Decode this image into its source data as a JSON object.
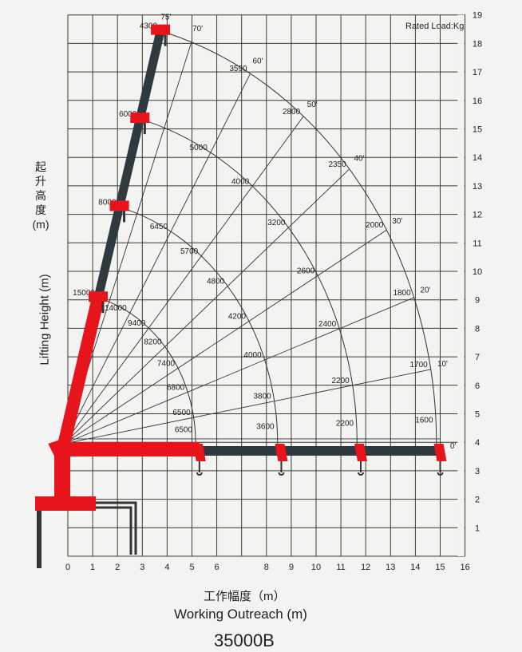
{
  "chart_data": {
    "type": "line",
    "title": "35000B",
    "xlabel_cn": "工作幅度（m）",
    "xlabel": "Working Outreach (m)",
    "ylabel_cn": "起升高度",
    "ylabel_unit": "(m)",
    "ylabel": "Lifting Height (m)",
    "note": "Rated Load:Kg",
    "xlim": [
      0,
      16
    ],
    "ylim": [
      0,
      19
    ],
    "xticks": [
      "0",
      "1",
      "2",
      "3",
      "4",
      "5",
      "6",
      "8",
      "9",
      "10",
      "11",
      "12",
      "13",
      "14",
      "15",
      "16"
    ],
    "yticks": [
      "1",
      "2",
      "3",
      "4",
      "5",
      "6",
      "7",
      "8",
      "9",
      "10",
      "11",
      "12",
      "13",
      "14",
      "15",
      "16",
      "17",
      "18",
      "19"
    ],
    "grid": true,
    "angles": [
      "0°",
      "10°",
      "20°",
      "30°",
      "40°",
      "50°",
      "60°",
      "70°",
      "75°"
    ],
    "boom_sections": [
      {
        "loads": {
          "0": "6500",
          "10": "6500",
          "20": "6800",
          "30": "7400",
          "40": "8200",
          "50": "9400",
          "60": "14000",
          "75": "15000"
        }
      },
      {
        "loads": {
          "0": "3600",
          "10": "3800",
          "20": "4000",
          "30": "4200",
          "40": "4800",
          "50": "5700",
          "60": "6450",
          "75": "8000"
        }
      },
      {
        "loads": {
          "0": "2200",
          "10": "2200",
          "20": "2400",
          "30": "2600",
          "40": "3200",
          "50": "4000",
          "60": "5000",
          "75": "6000"
        }
      },
      {
        "loads": {
          "0": "1600",
          "10": "1700",
          "20": "1800",
          "30": "2000",
          "40": "2350",
          "50": "2800",
          "60": "3590",
          "75": "4300"
        }
      }
    ],
    "colors": {
      "boom_base": "#e8141c",
      "boom_ext": "#2f3a40",
      "grid": "#3a3a32"
    }
  }
}
